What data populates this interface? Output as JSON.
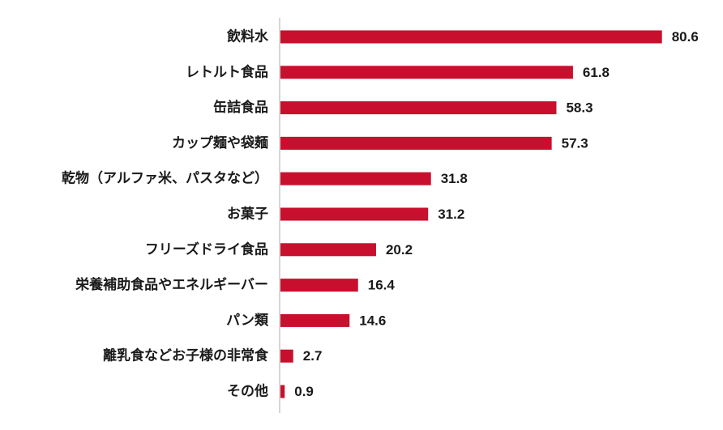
{
  "chart_data": {
    "type": "bar",
    "orientation": "horizontal",
    "title": "",
    "xlabel": "",
    "ylabel": "",
    "categories": [
      "飲料水",
      "レトルト食品",
      "缶詰食品",
      "カップ麺や袋麺",
      "乾物（アルファ米、パスタなど）",
      "お菓子",
      "フリーズドライ食品",
      "栄養補助食品やエネルギーバー",
      "パン類",
      "離乳食などお子様の非常食",
      "その他"
    ],
    "values": [
      80.6,
      61.8,
      58.3,
      57.3,
      31.8,
      31.2,
      20.2,
      16.4,
      14.6,
      2.7,
      0.9
    ],
    "value_labels": [
      "80.6",
      "61.8",
      "58.3",
      "57.3",
      "31.8",
      "31.2",
      "20.2",
      "16.4",
      "14.6",
      "2.7",
      "0.9"
    ],
    "xlim": [
      0,
      100
    ],
    "bar_color": "#c8102e",
    "grid": false,
    "legend": "none"
  }
}
